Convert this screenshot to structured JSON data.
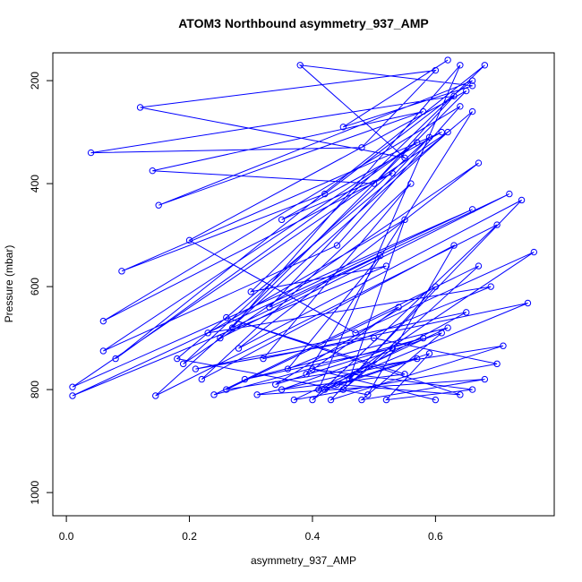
{
  "chart_data": {
    "type": "line",
    "title": "ATOM3 Northbound asymmetry_937_AMP",
    "x_label": "asymmetry_937_AMP",
    "y_label": "Pressure (mbar)",
    "x": [
      0.62,
      0.45,
      0.66,
      0.38,
      0.55,
      0.12,
      0.6,
      0.48,
      0.04,
      0.63,
      0.5,
      0.14,
      0.58,
      0.15,
      0.66,
      0.42,
      0.09,
      0.61,
      0.35,
      0.53,
      0.06,
      0.64,
      0.44,
      0.06,
      0.57,
      0.08,
      0.68,
      0.3,
      0.52,
      0.01,
      0.66,
      0.01,
      0.62,
      0.145,
      0.7,
      0.4,
      0.76,
      0.47,
      0.2,
      0.65,
      0.25,
      0.72,
      0.33,
      0.59,
      0.19,
      0.67,
      0.28,
      0.74,
      0.46,
      0.55,
      0.23,
      0.69,
      0.36,
      0.51,
      0.27,
      0.64,
      0.41,
      0.75,
      0.32,
      0.56,
      0.22,
      0.63,
      0.49,
      0.18,
      0.66,
      0.39,
      0.54,
      0.26,
      0.71,
      0.43,
      0.6,
      0.34,
      0.58,
      0.24,
      0.67,
      0.45,
      0.53,
      0.29,
      0.62,
      0.37,
      0.7,
      0.5,
      0.21,
      0.65,
      0.42,
      0.57,
      0.31,
      0.68,
      0.48,
      0.61,
      0.35,
      0.55,
      0.26,
      0.64,
      0.44,
      0.59,
      0.52,
      0.66,
      0.4,
      0.6
    ],
    "series": [
      {
        "color": "#0000ff",
        "values": [
          160,
          290,
          210,
          170,
          350,
          252,
          180,
          330,
          340,
          230,
          400,
          375,
          260,
          442,
          200,
          420,
          570,
          300,
          470,
          380,
          667,
          250,
          520,
          725,
          320,
          740,
          170,
          610,
          560,
          812,
          450,
          795,
          300,
          812,
          480,
          820,
          533,
          690,
          510,
          220,
          700,
          420,
          640,
          310,
          750,
          360,
          720,
          432,
          780,
          470,
          690,
          600,
          760,
          540,
          680,
          170,
          800,
          632,
          740,
          400,
          780,
          520,
          810,
          740,
          260,
          770,
          640,
          800,
          715,
          820,
          600,
          790,
          700,
          810,
          560,
          800,
          720,
          780,
          680,
          820,
          750,
          700,
          760,
          650,
          800,
          740,
          810,
          780,
          820,
          690,
          800,
          770,
          660,
          810,
          790,
          730,
          820,
          800,
          760,
          820
        ]
      }
    ],
    "xlim": [
      -0.022,
      0.793
    ],
    "xticks": [
      {
        "value": 0,
        "label": "0.0"
      },
      {
        "value": 0.2,
        "label": "0.2"
      },
      {
        "value": 0.4,
        "label": "0.4"
      },
      {
        "value": 0.6,
        "label": "0.6"
      }
    ],
    "ylim": [
      1045,
      146
    ],
    "yticks": [
      200,
      400,
      600,
      800,
      1000
    ],
    "markers": true
  }
}
